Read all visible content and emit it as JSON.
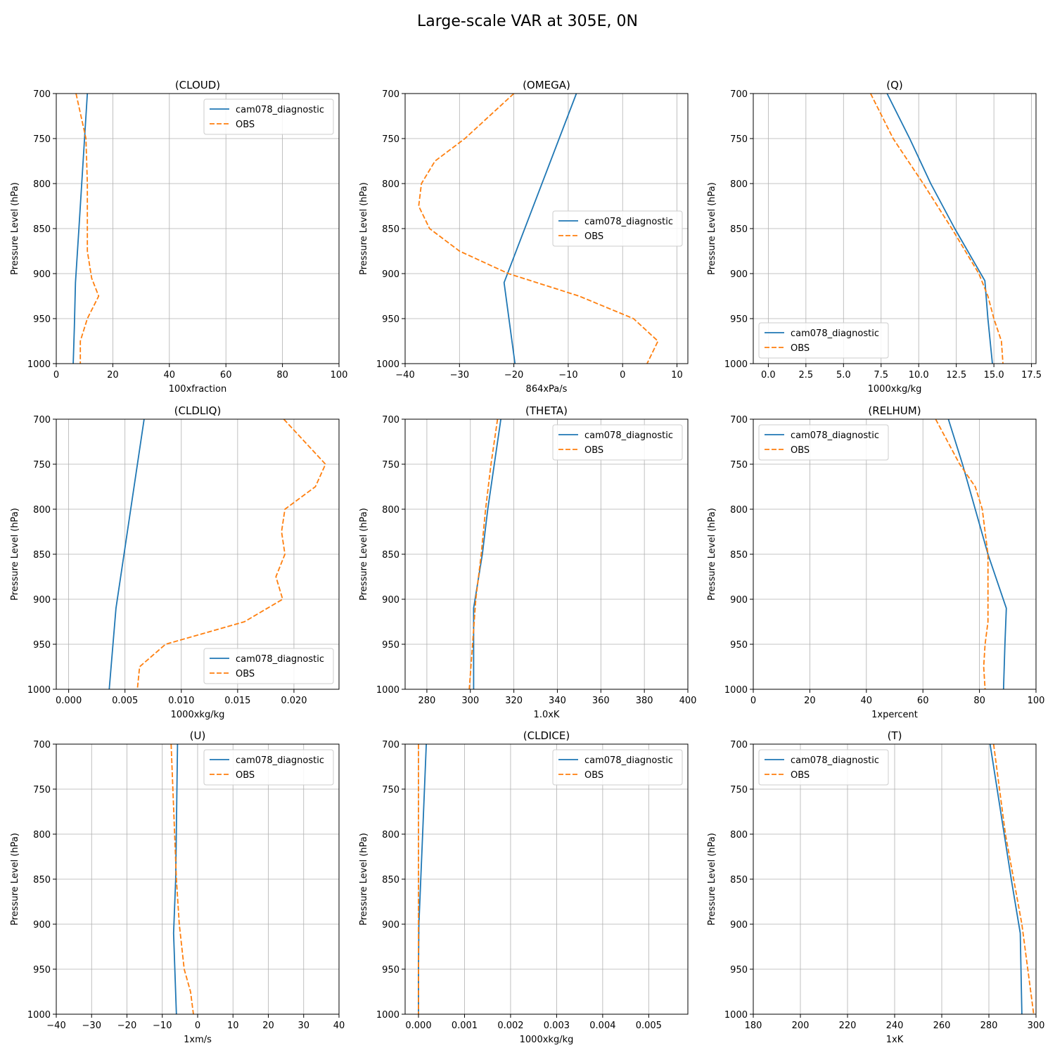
{
  "figure": {
    "title": "Large-scale VAR at 305E, 0N"
  },
  "chart_data": [
    {
      "type": "line",
      "title": "(CLOUD)",
      "xlabel": "100xfraction",
      "ylabel": "Pressure Level (hPa)",
      "xlim": [
        0,
        100
      ],
      "ylim": [
        1000,
        700
      ],
      "xticks": [
        0,
        20,
        40,
        60,
        80,
        100
      ],
      "xtick_labels": [
        "0",
        "20",
        "40",
        "60",
        "80",
        "100"
      ],
      "yticks": [
        700,
        750,
        800,
        850,
        900,
        950,
        1000
      ],
      "ytick_labels": [
        "700",
        "750",
        "800",
        "850",
        "900",
        "950",
        "1000"
      ],
      "grid": true,
      "legend_loc": "upper right",
      "series": [
        {
          "name": "cam078_diagnostic",
          "color": "#1f77b4",
          "dash": "solid",
          "y": [
            700,
            750,
            800,
            850,
            910,
            960,
            1000
          ],
          "x": [
            11,
            10,
            9,
            8,
            6.8,
            6.4,
            6
          ]
        },
        {
          "name": "OBS",
          "color": "#ff7f0e",
          "dash": "dashed",
          "y": [
            700,
            750,
            800,
            850,
            875,
            905,
            925,
            950,
            975,
            1000
          ],
          "x": [
            7,
            10.5,
            11,
            11,
            11,
            12.5,
            15,
            11,
            8.5,
            8.5
          ]
        }
      ]
    },
    {
      "type": "line",
      "title": "(OMEGA)",
      "xlabel": "864xPa/s",
      "ylabel": "Pressure Level (hPa)",
      "xlim": [
        -40,
        12
      ],
      "ylim": [
        1000,
        700
      ],
      "xticks": [
        -40,
        -30,
        -20,
        -10,
        0,
        10
      ],
      "xtick_labels": [
        "−40",
        "−30",
        "−20",
        "−10",
        "0",
        "10"
      ],
      "yticks": [
        700,
        750,
        800,
        850,
        900,
        950,
        1000
      ],
      "ytick_labels": [
        "700",
        "750",
        "800",
        "850",
        "900",
        "950",
        "1000"
      ],
      "grid": true,
      "legend_loc": "center right",
      "series": [
        {
          "name": "cam078_diagnostic",
          "color": "#1f77b4",
          "dash": "solid",
          "y": [
            700,
            910,
            1000
          ],
          "x": [
            -8.5,
            -21.8,
            -19.8
          ]
        },
        {
          "name": "OBS",
          "color": "#ff7f0e",
          "dash": "dashed",
          "y": [
            700,
            750,
            775,
            800,
            825,
            850,
            875,
            900,
            925,
            950,
            975,
            1000
          ],
          "x": [
            -20,
            -29,
            -34.5,
            -37,
            -37.5,
            -35.5,
            -30,
            -21,
            -8,
            2,
            6.5,
            4.5
          ]
        }
      ]
    },
    {
      "type": "line",
      "title": "(Q)",
      "xlabel": "1000xkg/kg",
      "ylabel": "Pressure Level (hPa)",
      "xlim": [
        -1,
        17.8
      ],
      "ylim": [
        1000,
        700
      ],
      "xticks": [
        0,
        2.5,
        5,
        7.5,
        10,
        12.5,
        15,
        17.5
      ],
      "xtick_labels": [
        "0.0",
        "2.5",
        "5.0",
        "7.5",
        "10.0",
        "12.5",
        "15.0",
        "17.5"
      ],
      "yticks": [
        700,
        750,
        800,
        850,
        900,
        950,
        1000
      ],
      "ytick_labels": [
        "700",
        "750",
        "800",
        "850",
        "900",
        "950",
        "1000"
      ],
      "grid": true,
      "legend_loc": "lower left",
      "series": [
        {
          "name": "cam078_diagnostic",
          "color": "#1f77b4",
          "dash": "solid",
          "y": [
            700,
            750,
            800,
            850,
            908,
            950,
            1000
          ],
          "x": [
            7.9,
            9.4,
            10.8,
            12.4,
            14.4,
            14.6,
            14.9
          ]
        },
        {
          "name": "OBS",
          "color": "#ff7f0e",
          "dash": "dashed",
          "y": [
            700,
            750,
            775,
            800,
            850,
            900,
            925,
            950,
            975,
            1000
          ],
          "x": [
            6.8,
            8.3,
            9.3,
            10.3,
            12.2,
            14,
            14.6,
            15,
            15.5,
            15.6
          ]
        }
      ]
    },
    {
      "type": "line",
      "title": "(CLDLIQ)",
      "xlabel": "1000xkg/kg",
      "ylabel": "Pressure Level (hPa)",
      "xlim": [
        -0.0011,
        0.024
      ],
      "ylim": [
        1000,
        700
      ],
      "xticks": [
        0,
        0.005,
        0.01,
        0.015,
        0.02
      ],
      "xtick_labels": [
        "0.000",
        "0.005",
        "0.010",
        "0.015",
        "0.020"
      ],
      "yticks": [
        700,
        750,
        800,
        850,
        900,
        950,
        1000
      ],
      "ytick_labels": [
        "700",
        "750",
        "800",
        "850",
        "900",
        "950",
        "1000"
      ],
      "grid": true,
      "legend_loc": "lower right",
      "series": [
        {
          "name": "cam078_diagnostic",
          "color": "#1f77b4",
          "dash": "solid",
          "y": [
            700,
            910,
            1000
          ],
          "x": [
            0.0067,
            0.0042,
            0.0036
          ]
        },
        {
          "name": "OBS",
          "color": "#ff7f0e",
          "dash": "dashed",
          "y": [
            700,
            750,
            775,
            800,
            825,
            850,
            875,
            900,
            925,
            950,
            975,
            1000
          ],
          "x": [
            0.0191,
            0.0228,
            0.0219,
            0.0192,
            0.0189,
            0.0192,
            0.0184,
            0.019,
            0.0156,
            0.0086,
            0.0063,
            0.0061
          ]
        }
      ]
    },
    {
      "type": "line",
      "title": "(THETA)",
      "xlabel": "1.0xK",
      "ylabel": "Pressure Level (hPa)",
      "xlim": [
        270,
        400
      ],
      "ylim": [
        1000,
        700
      ],
      "xticks": [
        280,
        300,
        320,
        340,
        360,
        380,
        400
      ],
      "xtick_labels": [
        "280",
        "300",
        "320",
        "340",
        "360",
        "380",
        "400"
      ],
      "yticks": [
        700,
        750,
        800,
        850,
        900,
        950,
        1000
      ],
      "ytick_labels": [
        "700",
        "750",
        "800",
        "850",
        "900",
        "950",
        "1000"
      ],
      "grid": true,
      "legend_loc": "upper right",
      "series": [
        {
          "name": "cam078_diagnostic",
          "color": "#1f77b4",
          "dash": "solid",
          "y": [
            700,
            750,
            800,
            850,
            910,
            950,
            1000
          ],
          "x": [
            314,
            311,
            308,
            305.5,
            301.5,
            301.5,
            301.5
          ]
        },
        {
          "name": "OBS",
          "color": "#ff7f0e",
          "dash": "dashed",
          "y": [
            700,
            750,
            800,
            850,
            900,
            950,
            1000
          ],
          "x": [
            312.5,
            309.5,
            307,
            305,
            302.5,
            301,
            299.5
          ]
        }
      ]
    },
    {
      "type": "line",
      "title": "(RELHUM)",
      "xlabel": "1xpercent",
      "ylabel": "Pressure Level (hPa)",
      "xlim": [
        0,
        100
      ],
      "ylim": [
        1000,
        700
      ],
      "xticks": [
        0,
        20,
        40,
        60,
        80,
        100
      ],
      "xtick_labels": [
        "0",
        "20",
        "40",
        "60",
        "80",
        "100"
      ],
      "yticks": [
        700,
        750,
        800,
        850,
        900,
        950,
        1000
      ],
      "ytick_labels": [
        "700",
        "750",
        "800",
        "850",
        "900",
        "950",
        "1000"
      ],
      "grid": true,
      "legend_loc": "upper left",
      "series": [
        {
          "name": "cam078_diagnostic",
          "color": "#1f77b4",
          "dash": "solid",
          "y": [
            700,
            750,
            800,
            850,
            910,
            950,
            1000
          ],
          "x": [
            69,
            74,
            78.5,
            83,
            89.5,
            89,
            88.5
          ]
        },
        {
          "name": "OBS",
          "color": "#ff7f0e",
          "dash": "dashed",
          "y": [
            700,
            750,
            775,
            800,
            825,
            850,
            875,
            900,
            925,
            950,
            975,
            1000
          ],
          "x": [
            64.5,
            73,
            78.5,
            81,
            82,
            83,
            83,
            83,
            83,
            82,
            81.5,
            82
          ]
        }
      ]
    },
    {
      "type": "line",
      "title": "(U)",
      "xlabel": "1xm/s",
      "ylabel": "Pressure Level (hPa)",
      "xlim": [
        -40,
        40
      ],
      "ylim": [
        1000,
        700
      ],
      "xticks": [
        -40,
        -30,
        -20,
        -10,
        0,
        10,
        20,
        30,
        40
      ],
      "xtick_labels": [
        "−40",
        "−30",
        "−20",
        "−10",
        "0",
        "10",
        "20",
        "30",
        "40"
      ],
      "yticks": [
        700,
        750,
        800,
        850,
        900,
        950,
        1000
      ],
      "ytick_labels": [
        "700",
        "750",
        "800",
        "850",
        "900",
        "950",
        "1000"
      ],
      "grid": true,
      "legend_loc": "upper right",
      "series": [
        {
          "name": "cam078_diagnostic",
          "color": "#1f77b4",
          "dash": "solid",
          "y": [
            700,
            850,
            910,
            1000
          ],
          "x": [
            -5.7,
            -6.2,
            -6.8,
            -6
          ]
        },
        {
          "name": "OBS",
          "color": "#ff7f0e",
          "dash": "dashed",
          "y": [
            700,
            800,
            850,
            900,
            950,
            975,
            1000
          ],
          "x": [
            -7.5,
            -6.5,
            -6,
            -5.2,
            -3.8,
            -2,
            -1.2
          ]
        }
      ]
    },
    {
      "type": "line",
      "title": "(CLDICE)",
      "xlabel": "1000xkg/kg",
      "ylabel": "Pressure Level (hPa)",
      "xlim": [
        -0.00029,
        0.00585
      ],
      "ylim": [
        1000,
        700
      ],
      "xticks": [
        0,
        0.001,
        0.002,
        0.003,
        0.004,
        0.005
      ],
      "xtick_labels": [
        "0.000",
        "0.001",
        "0.002",
        "0.003",
        "0.004",
        "0.005"
      ],
      "yticks": [
        700,
        750,
        800,
        850,
        900,
        950,
        1000
      ],
      "ytick_labels": [
        "700",
        "750",
        "800",
        "850",
        "900",
        "950",
        "1000"
      ],
      "grid": true,
      "legend_loc": "upper right",
      "series": [
        {
          "name": "cam078_diagnostic",
          "color": "#1f77b4",
          "dash": "solid",
          "y": [
            700,
            800,
            900,
            950,
            1000
          ],
          "x": [
            0.00017,
            9e-05,
            1e-05,
            0,
            0
          ]
        },
        {
          "name": "OBS",
          "color": "#ff7f0e",
          "dash": "dashed",
          "y": [
            700,
            1000
          ],
          "x": [
            0,
            0
          ]
        }
      ]
    },
    {
      "type": "line",
      "title": "(T)",
      "xlabel": "1xK",
      "ylabel": "Pressure Level (hPa)",
      "xlim": [
        180,
        300
      ],
      "ylim": [
        1000,
        700
      ],
      "xticks": [
        180,
        200,
        220,
        240,
        260,
        280,
        300
      ],
      "xtick_labels": [
        "180",
        "200",
        "220",
        "240",
        "260",
        "280",
        "300"
      ],
      "yticks": [
        700,
        750,
        800,
        850,
        900,
        950,
        1000
      ],
      "ytick_labels": [
        "700",
        "750",
        "800",
        "850",
        "900",
        "950",
        "1000"
      ],
      "grid": true,
      "legend_loc": "upper left",
      "series": [
        {
          "name": "cam078_diagnostic",
          "color": "#1f77b4",
          "dash": "solid",
          "y": [
            700,
            850,
            910,
            1000
          ],
          "x": [
            280.5,
            289.5,
            293.3,
            294
          ]
        },
        {
          "name": "OBS",
          "color": "#ff7f0e",
          "dash": "dashed",
          "y": [
            700,
            800,
            900,
            1000
          ],
          "x": [
            282,
            287,
            294,
            299
          ]
        }
      ]
    }
  ]
}
